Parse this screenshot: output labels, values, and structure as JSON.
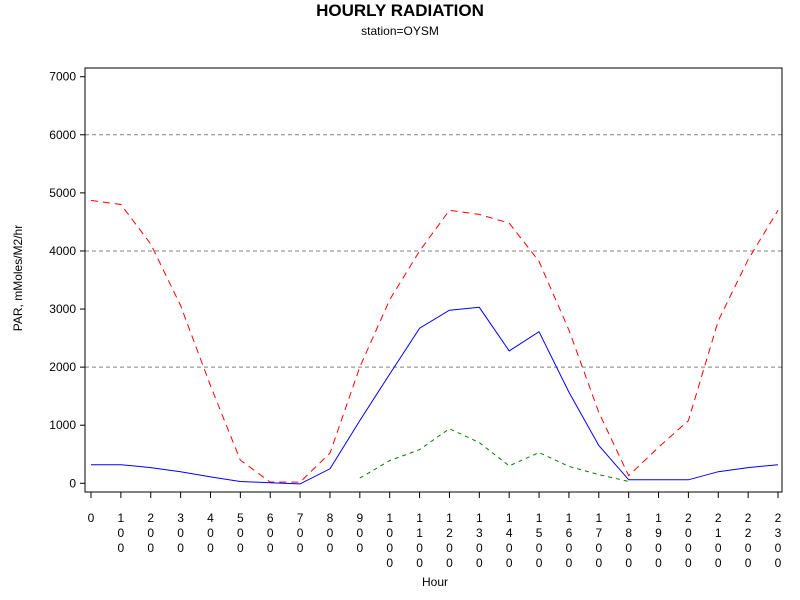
{
  "chart_data": {
    "type": "line",
    "title": "HOURLY RADIATION",
    "subtitle": "station=OYSM",
    "xlabel": "Hour",
    "ylabel": "PAR, mMoles/M2/hr",
    "ylim": [
      -150,
      7150
    ],
    "yticks": [
      0,
      1000,
      2000,
      3000,
      4000,
      5000,
      6000,
      7000
    ],
    "grid_y": [
      2000,
      4000,
      6000
    ],
    "x": [
      0,
      100,
      200,
      300,
      400,
      500,
      600,
      700,
      800,
      900,
      1000,
      1100,
      1200,
      1300,
      1400,
      1500,
      1600,
      1700,
      1800,
      1900,
      2000,
      2100,
      2200,
      2300
    ],
    "xtick_labels": [
      "0",
      "100",
      "200",
      "300",
      "400",
      "500",
      "600",
      "700",
      "800",
      "900",
      "1000",
      "1100",
      "1200",
      "1300",
      "1400",
      "1500",
      "1600",
      "1700",
      "1800",
      "1900",
      "2000",
      "2100",
      "2200",
      "2300"
    ],
    "series": [
      {
        "color": "#ff0000",
        "dash": "dashed",
        "values": [
          4870,
          4800,
          4120,
          3060,
          1680,
          400,
          20,
          20,
          520,
          2000,
          3160,
          4000,
          4700,
          4630,
          4480,
          3820,
          2640,
          1220,
          130,
          620,
          1080,
          2800,
          3850,
          4700
        ]
      },
      {
        "color": "#0000ff",
        "dash": "solid",
        "values": [
          320,
          320,
          270,
          200,
          110,
          30,
          10,
          -10,
          250,
          1080,
          1880,
          2670,
          2980,
          3030,
          2280,
          2610,
          1570,
          650,
          60,
          60,
          60,
          200,
          270,
          320
        ]
      },
      {
        "color": "#008000",
        "dash": "dotted",
        "values": [
          null,
          null,
          null,
          null,
          null,
          null,
          null,
          null,
          null,
          90,
          390,
          580,
          940,
          700,
          300,
          530,
          290,
          150,
          30,
          null,
          null,
          null,
          null,
          null
        ]
      }
    ]
  }
}
